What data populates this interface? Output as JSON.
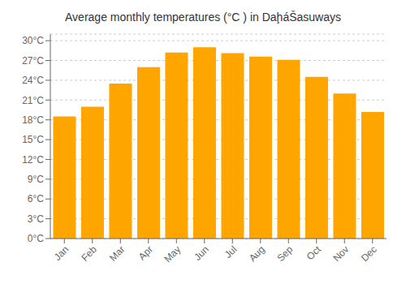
{
  "chart_data": {
    "type": "bar",
    "title": "Average monthly temperatures (°C ) in DaḩáŠasuways",
    "categories": [
      "Jan",
      "Feb",
      "Mar",
      "Apr",
      "May",
      "Jun",
      "Jul",
      "Aug",
      "Sep",
      "Oct",
      "Nov",
      "Dec"
    ],
    "values": [
      18.5,
      20.0,
      23.5,
      26.0,
      28.2,
      29.0,
      28.1,
      27.6,
      27.1,
      24.5,
      22.0,
      19.2
    ],
    "color": "#FFA500",
    "ylim": [
      0,
      31
    ],
    "yticks": [
      {
        "value": 0,
        "label": "0°C"
      },
      {
        "value": 3,
        "label": "3°C"
      },
      {
        "value": 6,
        "label": "6°C"
      },
      {
        "value": 9,
        "label": "9°C"
      },
      {
        "value": 12,
        "label": "12°C"
      },
      {
        "value": 15,
        "label": "15°C"
      },
      {
        "value": 18,
        "label": "18°C"
      },
      {
        "value": 21,
        "label": "21°C"
      },
      {
        "value": 24,
        "label": "24°C"
      },
      {
        "value": 27,
        "label": "27°C"
      },
      {
        "value": 30,
        "label": "30°C"
      }
    ],
    "grid": true
  }
}
